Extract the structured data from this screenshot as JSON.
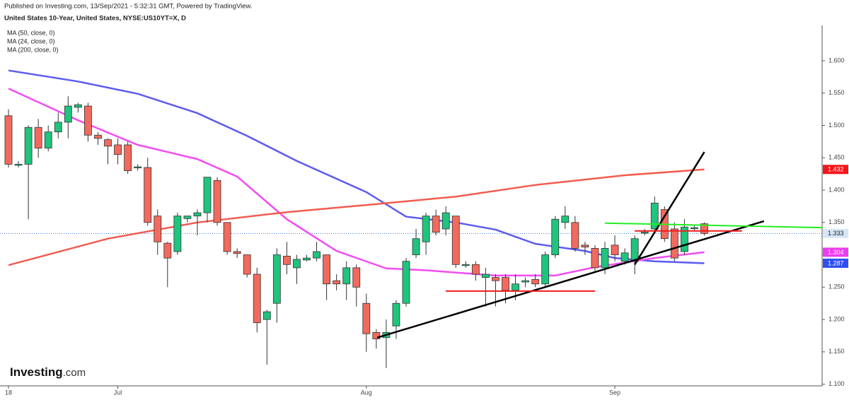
{
  "header": {
    "published": "Published on Investing.com, 13/Sep/2021 - 5:32:31 GMT, Powered by TradingView.",
    "title": "United States 10-Year, United States, NYSE:US10YT=X, D"
  },
  "logo": {
    "name": "Investing",
    "suffix": ".com"
  },
  "chart_data": {
    "type": "candlestick",
    "categories": [
      "18",
      null,
      null,
      null,
      null,
      null,
      null,
      null,
      null,
      null,
      null,
      "Jul",
      null,
      null,
      null,
      null,
      null,
      null,
      null,
      null,
      null,
      null,
      null,
      null,
      null,
      null,
      null,
      null,
      null,
      null,
      null,
      null,
      null,
      null,
      null,
      null,
      "Aug",
      null,
      null,
      null,
      null,
      null,
      null,
      null,
      null,
      null,
      null,
      null,
      null,
      null,
      null,
      null,
      null,
      null,
      null,
      null,
      null,
      null,
      null,
      null,
      null,
      "Sep",
      null,
      null,
      null,
      null,
      null,
      null,
      null,
      null,
      null
    ],
    "open": [
      1.515,
      1.44,
      1.44,
      1.497,
      1.465,
      1.49,
      1.505,
      1.528,
      1.53,
      1.485,
      1.478,
      1.47,
      1.47,
      1.436,
      1.435,
      1.36,
      1.318,
      1.305,
      1.356,
      1.36,
      1.365,
      1.415,
      1.35,
      1.305,
      1.3,
      1.27,
      1.2,
      1.225,
      1.298,
      1.28,
      1.292,
      1.295,
      1.3,
      1.26,
      1.255,
      1.28,
      1.225,
      1.18,
      1.172,
      1.19,
      1.225,
      1.3,
      1.32,
      1.36,
      1.34,
      1.36,
      1.285,
      1.285,
      1.265,
      1.265,
      1.265,
      1.245,
      1.258,
      1.262,
      1.255,
      1.3,
      1.35,
      1.35,
      1.315,
      1.31,
      1.28,
      1.315,
      1.29,
      1.29,
      1.335,
      1.34,
      1.37,
      1.34,
      1.305,
      1.342,
      1.348
    ],
    "high": [
      1.525,
      1.445,
      1.5,
      1.51,
      1.5,
      1.52,
      1.545,
      1.535,
      1.535,
      1.49,
      1.48,
      1.48,
      1.475,
      1.44,
      1.45,
      1.37,
      1.32,
      1.365,
      1.36,
      1.37,
      1.42,
      1.42,
      1.35,
      1.31,
      1.3,
      1.28,
      1.215,
      1.31,
      1.32,
      1.3,
      1.3,
      1.32,
      1.3,
      1.27,
      1.29,
      1.285,
      1.24,
      1.185,
      1.2,
      1.23,
      1.295,
      1.34,
      1.365,
      1.37,
      1.375,
      1.36,
      1.29,
      1.29,
      1.28,
      1.27,
      1.27,
      1.27,
      1.265,
      1.27,
      1.305,
      1.36,
      1.375,
      1.36,
      1.32,
      1.315,
      1.32,
      1.33,
      1.31,
      1.33,
      1.34,
      1.39,
      1.375,
      1.35,
      1.355,
      1.345,
      1.35
    ],
    "low": [
      1.435,
      1.435,
      1.355,
      1.45,
      1.46,
      1.48,
      1.48,
      1.52,
      1.475,
      1.47,
      1.44,
      1.44,
      1.425,
      1.43,
      1.345,
      1.3,
      1.25,
      1.3,
      1.35,
      1.33,
      1.35,
      1.345,
      1.3,
      1.295,
      1.265,
      1.18,
      1.13,
      1.195,
      1.27,
      1.255,
      1.29,
      1.29,
      1.23,
      1.245,
      1.23,
      1.22,
      1.15,
      1.155,
      1.125,
      1.17,
      1.22,
      1.295,
      1.3,
      1.33,
      1.33,
      1.28,
      1.28,
      1.26,
      1.22,
      1.22,
      1.225,
      1.23,
      1.25,
      1.25,
      1.25,
      1.295,
      1.34,
      1.305,
      1.3,
      1.275,
      1.27,
      1.29,
      1.285,
      1.27,
      1.33,
      1.335,
      1.32,
      1.29,
      1.3,
      1.338,
      1.33
    ],
    "close": [
      1.44,
      1.44,
      1.497,
      1.465,
      1.49,
      1.505,
      1.53,
      1.532,
      1.485,
      1.48,
      1.468,
      1.455,
      1.43,
      1.436,
      1.35,
      1.32,
      1.295,
      1.36,
      1.36,
      1.365,
      1.42,
      1.35,
      1.305,
      1.302,
      1.27,
      1.195,
      1.212,
      1.3,
      1.285,
      1.293,
      1.295,
      1.305,
      1.255,
      1.255,
      1.28,
      1.25,
      1.178,
      1.17,
      1.18,
      1.225,
      1.29,
      1.325,
      1.36,
      1.335,
      1.365,
      1.285,
      1.285,
      1.27,
      1.27,
      1.26,
      1.245,
      1.255,
      1.26,
      1.255,
      1.3,
      1.355,
      1.36,
      1.31,
      1.312,
      1.28,
      1.31,
      1.3,
      1.303,
      1.325,
      1.335,
      1.38,
      1.325,
      1.295,
      1.343,
      1.342,
      1.333
    ],
    "up_color": "#1fc47d",
    "down_color": "#f26a5d",
    "series": [
      {
        "name": "MA (50, close, 0)",
        "color": "#5b5bf0",
        "x": [
          0,
          7,
          13,
          19,
          24,
          29,
          36,
          40,
          45,
          49,
          53,
          58,
          61,
          65,
          70
        ],
        "values": [
          1.585,
          1.568,
          1.549,
          1.519,
          1.484,
          1.445,
          1.397,
          1.359,
          1.35,
          1.339,
          1.317,
          1.306,
          1.295,
          1.29,
          1.287
        ]
      },
      {
        "name": "MA (24, close, 0)",
        "color": "#f24df2",
        "x": [
          0,
          7,
          13,
          19,
          23,
          28,
          33,
          38,
          42,
          49,
          55,
          59,
          65,
          70
        ],
        "values": [
          1.557,
          1.508,
          1.47,
          1.448,
          1.421,
          1.355,
          1.306,
          1.279,
          1.276,
          1.268,
          1.268,
          1.281,
          1.295,
          1.304
        ]
      },
      {
        "name": "MA (200, close, 0)",
        "color": "#f25c4f",
        "x": [
          0,
          10,
          19,
          28,
          36,
          45,
          53,
          62,
          70
        ],
        "values": [
          1.284,
          1.325,
          1.35,
          1.366,
          1.377,
          1.39,
          1.408,
          1.423,
          1.432
        ]
      }
    ],
    "ylim": [
      1.0985,
      1.6546
    ],
    "yticks": [
      {
        "value": 1.1,
        "label": "1.100"
      },
      {
        "value": 1.15,
        "label": "1.150"
      },
      {
        "value": 1.2,
        "label": "1.200"
      },
      {
        "value": 1.25,
        "label": "1.250"
      },
      {
        "value": 1.3,
        "label": "1.300"
      },
      {
        "value": 1.35,
        "label": "1.350"
      },
      {
        "value": 1.4,
        "label": "1.400"
      },
      {
        "value": 1.45,
        "label": "1.450"
      },
      {
        "value": 1.5,
        "label": "1.500"
      },
      {
        "value": 1.55,
        "label": "1.550"
      },
      {
        "value": 1.6,
        "label": "1.600"
      }
    ],
    "last_price": 1.333,
    "price_tags": [
      {
        "value": 1.432,
        "color": "#f7151a",
        "text_color": "#ffffff"
      },
      {
        "value": 1.333,
        "color": "#d6e6f7",
        "text_color": "#222222"
      },
      {
        "value": 1.304,
        "color": "#ee3cee",
        "text_color": "#ffffff"
      },
      {
        "value": 1.287,
        "color": "#2f4ff2",
        "text_color": "#ffffff"
      }
    ],
    "drawings": [
      {
        "color": "#000000",
        "points": [
          [
            37.1,
            1.172
          ],
          [
            76,
            1.352
          ]
        ]
      },
      {
        "color": "#000000",
        "points": [
          [
            63,
            1.285
          ],
          [
            70,
            1.459
          ]
        ]
      },
      {
        "color": "#ee1c1c",
        "points": [
          [
            44,
            1.244
          ],
          [
            59,
            1.244
          ]
        ]
      },
      {
        "color": "#ee1c1c",
        "points": [
          [
            63,
            1.337
          ],
          [
            73.8,
            1.337
          ]
        ]
      },
      {
        "color": "#22ee22",
        "points": [
          [
            60,
            1.349
          ],
          [
            81.9,
            1.342
          ]
        ]
      }
    ]
  }
}
